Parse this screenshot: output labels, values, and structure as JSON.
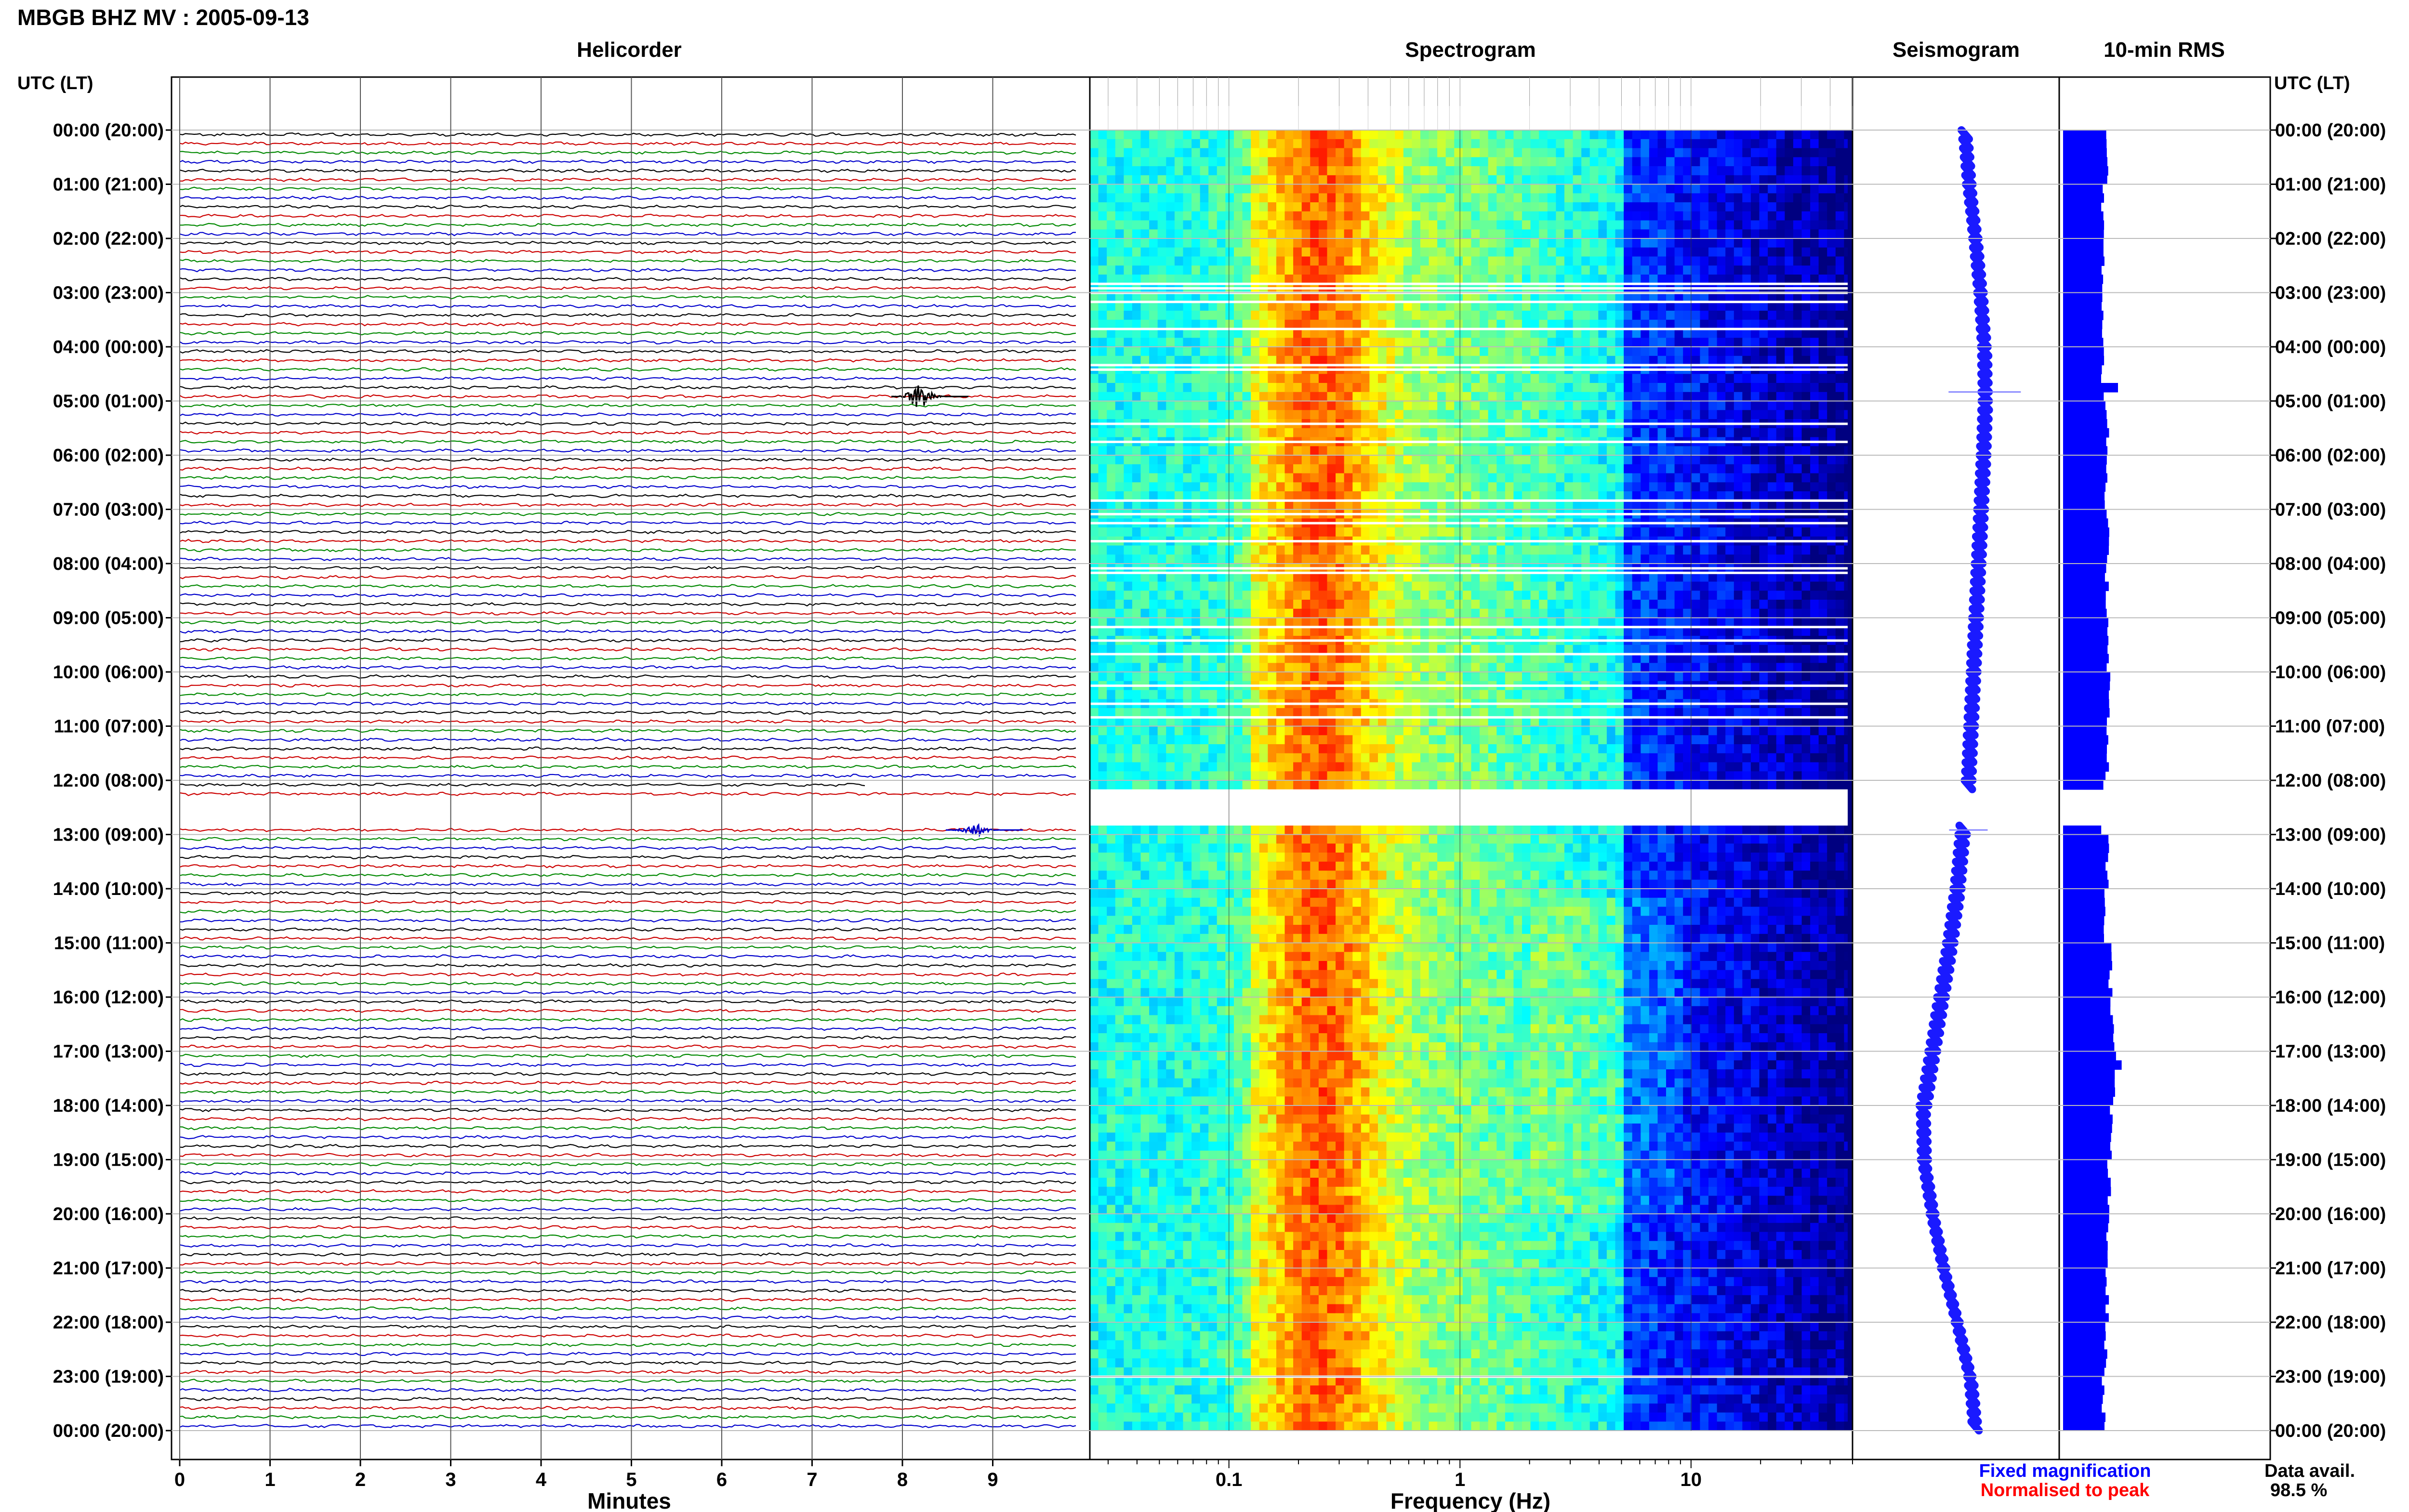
{
  "title": "MBGB BHZ MV : 2005-09-13",
  "colors": {
    "trace_cycle": [
      "#000000",
      "#cc0000",
      "#008800",
      "#0000cc"
    ],
    "fixed_magnification": "#0000ff",
    "normalised_to_peak": "#ff0000",
    "rms_bar": "#0000ff",
    "seismogram": "#1a1aff",
    "grid": "#bbbbbb"
  },
  "axis_headers": {
    "left": "UTC (LT)",
    "right": "UTC (LT)"
  },
  "time_labels": [
    "00:00 (20:00)",
    "01:00 (21:00)",
    "02:00 (22:00)",
    "03:00 (23:00)",
    "04:00 (00:00)",
    "05:00 (01:00)",
    "06:00 (02:00)",
    "07:00 (03:00)",
    "08:00 (04:00)",
    "09:00 (05:00)",
    "10:00 (06:00)",
    "11:00 (07:00)",
    "12:00 (08:00)",
    "13:00 (09:00)",
    "14:00 (10:00)",
    "15:00 (11:00)",
    "16:00 (12:00)",
    "17:00 (13:00)",
    "18:00 (14:00)",
    "19:00 (15:00)",
    "20:00 (16:00)",
    "21:00 (17:00)",
    "22:00 (18:00)",
    "23:00 (19:00)",
    "00:00 (20:00)"
  ],
  "footer": {
    "fixed_magnification": "Fixed magnification",
    "normalised_to_peak": "Normalised to peak",
    "data_avail_label": "Data avail.",
    "data_avail_value": "98.5 %"
  },
  "chart_data": [
    {
      "type": "line",
      "title": "Helicorder",
      "xlabel": "Minutes",
      "ylabel": "",
      "x_ticks": [
        "0",
        "1",
        "2",
        "3",
        "4",
        "5",
        "6",
        "7",
        "8",
        "9"
      ],
      "xlim": [
        0,
        10
      ],
      "lines_per_hour": 6,
      "hours": 24,
      "data_gap_utc": [
        "12:10",
        "12:50"
      ],
      "events": [
        {
          "hour": 4,
          "line": 5,
          "minute": 8.2,
          "amplitude": "large",
          "color": "#000000"
        },
        {
          "hour": 12,
          "line": 5,
          "minute": 8.8,
          "amplitude": "medium",
          "color": "#0000cc"
        }
      ],
      "grid": true
    },
    {
      "type": "heatmap",
      "title": "Spectrogram",
      "xlabel": "Frequency (Hz)",
      "x_scale": "log",
      "x_ticks": [
        "0.1",
        "1",
        "10"
      ],
      "xlim": [
        0.025,
        50
      ],
      "y": "time of day (UTC)",
      "colormap": "jet",
      "gap_rows_utc": [
        "02:50",
        "02:55",
        "03:00",
        "03:10",
        "03:40",
        "04:20",
        "04:25",
        "05:25",
        "05:45",
        "06:50",
        "07:05",
        "07:15",
        "07:35",
        "08:05",
        "08:10",
        "09:10",
        "09:25",
        "09:40",
        "10:15",
        "10:35",
        "10:50",
        "23:00"
      ],
      "data_gap_utc": [
        "12:10",
        "12:50"
      ]
    },
    {
      "type": "line",
      "title": "Seismogram",
      "description_values": "slowly varying long-period trace",
      "offsets": [
        0.15,
        0.22,
        0.32,
        0.4,
        0.46,
        0.47,
        0.44,
        0.4,
        0.36,
        0.32,
        0.28,
        0.24,
        0.2,
        0.1,
        0.02,
        -0.1,
        -0.24,
        -0.38,
        -0.52,
        -0.5,
        -0.36,
        -0.18,
        0.04,
        0.24,
        0.32
      ]
    },
    {
      "type": "bar",
      "title": "10-min RMS",
      "orientation": "horizontal",
      "hour_values": [
        0.24,
        0.22,
        0.22,
        0.22,
        0.22,
        0.24,
        0.23,
        0.24,
        0.24,
        0.25,
        0.25,
        0.24,
        0.22,
        0.24,
        0.23,
        0.26,
        0.27,
        0.28,
        0.26,
        0.25,
        0.24,
        0.24,
        0.23,
        0.22
      ],
      "spikes": [
        {
          "utc": "04:40",
          "value": 0.3
        },
        {
          "utc": "12:00",
          "value": 0.22
        },
        {
          "utc": "17:10",
          "value": 0.32
        }
      ]
    }
  ]
}
